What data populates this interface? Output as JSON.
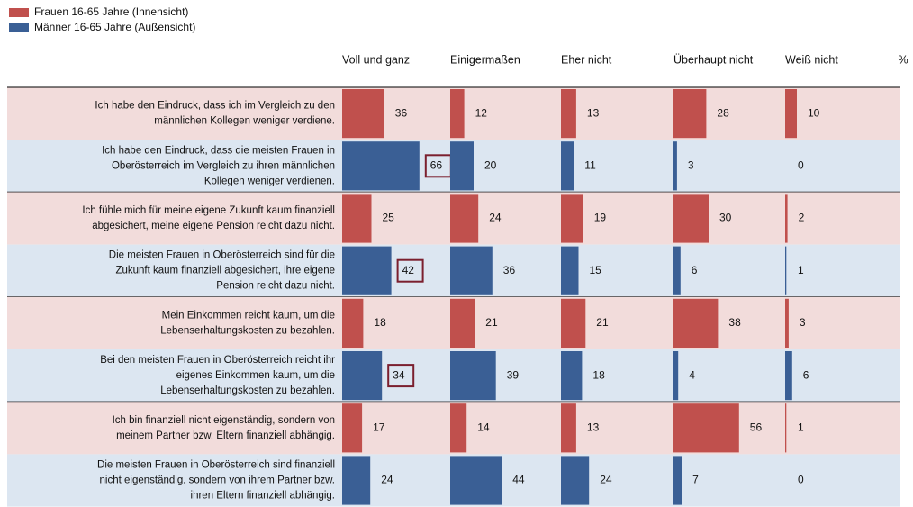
{
  "chart_data": {
    "type": "bar",
    "categories": [
      "Voll und ganz",
      "Einigermaßen",
      "Eher nicht",
      "Überhaupt nicht",
      "Weiß nicht"
    ],
    "unit_label": "%",
    "xlim": [
      0,
      100
    ],
    "series": [
      {
        "name": "Frauen 16-65 Jahre (Innensicht)",
        "color": "#c0504d",
        "background": "#f2dcdb",
        "labels": [
          [
            "Ich habe den Eindruck, dass ich im Vergleich zu den",
            "männlichen Kollegen weniger verdiene."
          ],
          [
            "Ich fühle mich für meine eigene Zukunft kaum finanziell",
            "abgesichert, meine eigene Pension reicht dazu nicht."
          ],
          [
            "Mein Einkommen reicht kaum, um die",
            "Lebenserhaltungskosten zu bezahlen."
          ],
          [
            "Ich bin finanziell nicht eigenständig, sondern von",
            "meinem Partner bzw. Eltern finanziell abhängig."
          ]
        ],
        "values": [
          [
            36,
            12,
            13,
            28,
            10
          ],
          [
            25,
            24,
            19,
            30,
            2
          ],
          [
            18,
            21,
            21,
            38,
            3
          ],
          [
            17,
            14,
            13,
            56,
            1
          ]
        ],
        "boxed": [
          false,
          false,
          false,
          false
        ]
      },
      {
        "name": "Männer 16-65 Jahre (Außensicht)",
        "color": "#3a5f95",
        "background": "#dce6f1",
        "labels": [
          [
            "Ich habe den Eindruck, dass die meisten Frauen in",
            "Oberösterreich im Vergleich zu ihren männlichen",
            "Kollegen weniger verdienen."
          ],
          [
            "Die meisten Frauen in Oberösterreich sind für die",
            "Zukunft kaum finanziell abgesichert, ihre eigene",
            "Pension reicht dazu nicht."
          ],
          [
            "Bei den meisten Frauen in Oberösterreich reicht ihr",
            "eigenes Einkommen kaum, um die",
            "Lebenserhaltungskosten zu bezahlen."
          ],
          [
            "Die meisten Frauen in Oberösterreich sind finanziell",
            "nicht eigenständig, sondern von ihrem Partner bzw.",
            "ihren Eltern finanziell abhängig."
          ]
        ],
        "values": [
          [
            66,
            20,
            11,
            3,
            0
          ],
          [
            42,
            36,
            15,
            6,
            1
          ],
          [
            34,
            39,
            18,
            4,
            6
          ],
          [
            24,
            44,
            24,
            7,
            0
          ]
        ],
        "boxed": [
          true,
          true,
          true,
          false
        ]
      }
    ]
  }
}
